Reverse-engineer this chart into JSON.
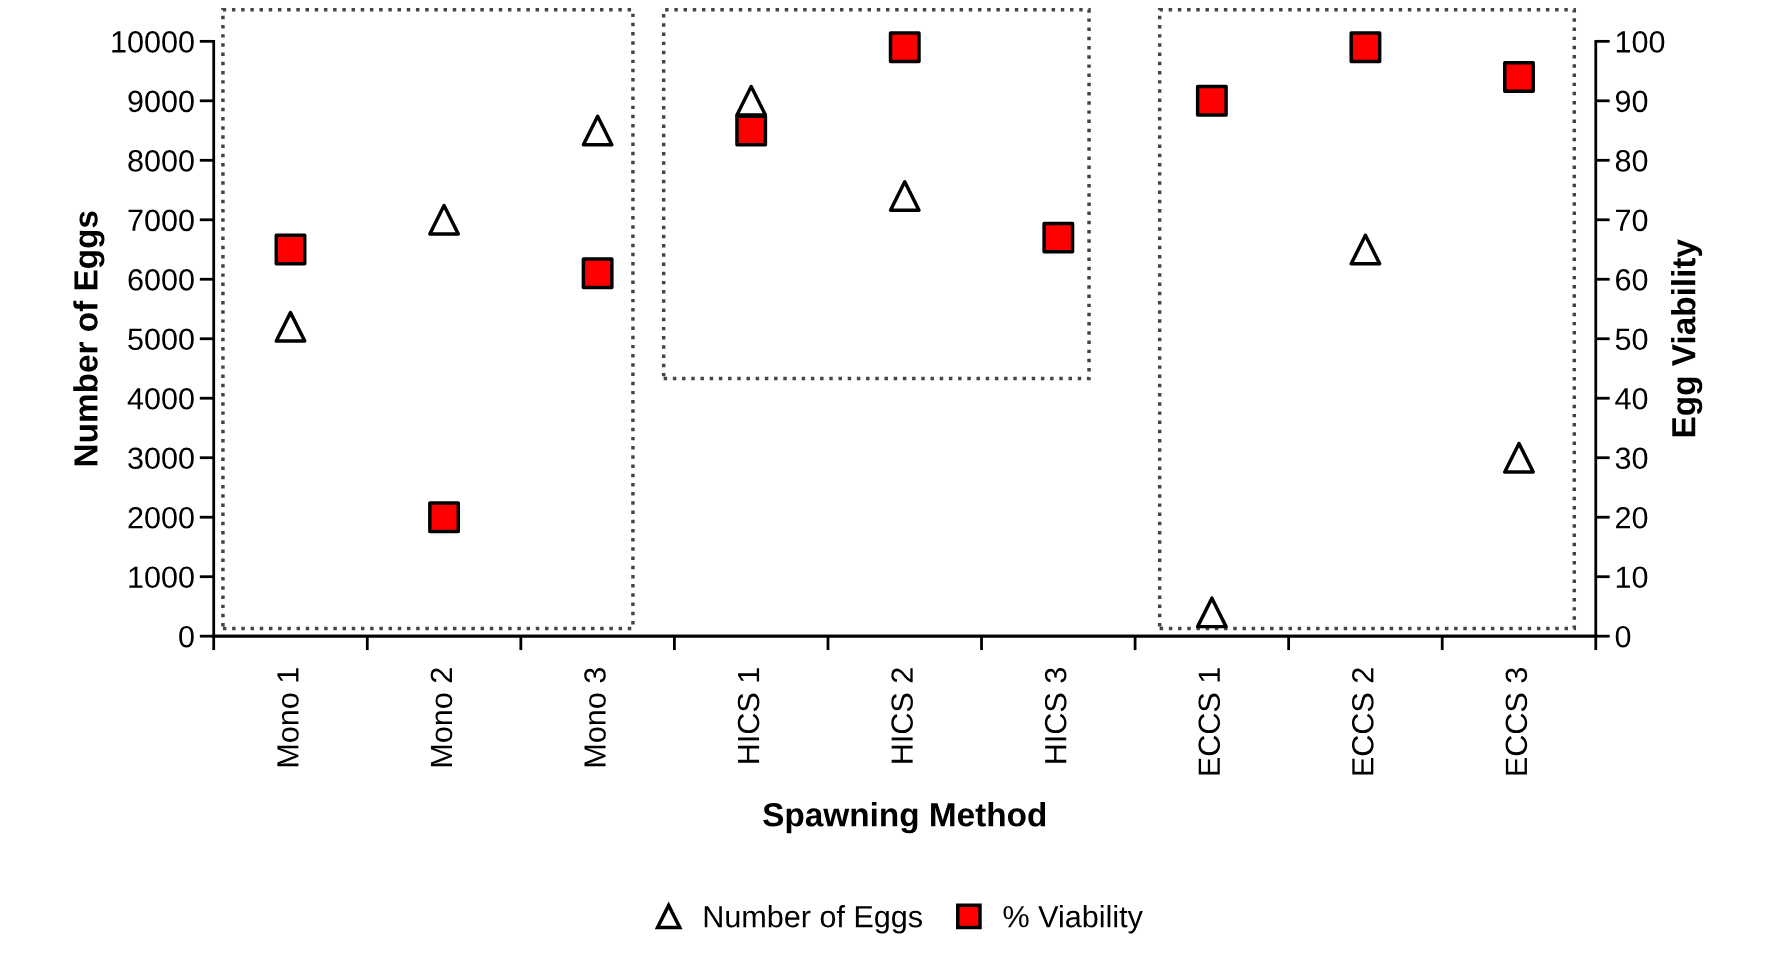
{
  "chart_data": {
    "type": "scatter",
    "xlabel": "Spawning Method",
    "ylabel": "Number of Eggs",
    "y2label": "Egg Viability",
    "categories": [
      "Mono 1",
      "Mono 2",
      "Mono 3",
      "HICS 1",
      "HICS 2",
      "HICS 3",
      "ECCS 1",
      "ECCS 2",
      "ECCS 3"
    ],
    "series": [
      {
        "name": "Number of Eggs",
        "color": "#ffffff",
        "marker": "triangle",
        "values": [
          5200,
          7000,
          8500,
          9000,
          7400,
          null,
          400,
          6500,
          3000
        ]
      },
      {
        "name": "% Viability",
        "color": "#ff0000",
        "marker": "square",
        "axis": "y2",
        "values": [
          65,
          20,
          61,
          85,
          99,
          67,
          90,
          99,
          94
        ]
      }
    ],
    "ylim": [
      0,
      10000
    ],
    "yticks": [
      0,
      1000,
      2000,
      3000,
      4000,
      5000,
      6000,
      7000,
      8000,
      9000,
      10000
    ],
    "y2lim": [
      0,
      100
    ],
    "y2ticks": [
      0,
      10,
      20,
      30,
      40,
      50,
      60,
      70,
      80,
      90,
      100
    ],
    "grid": false,
    "legend": "bottom"
  }
}
